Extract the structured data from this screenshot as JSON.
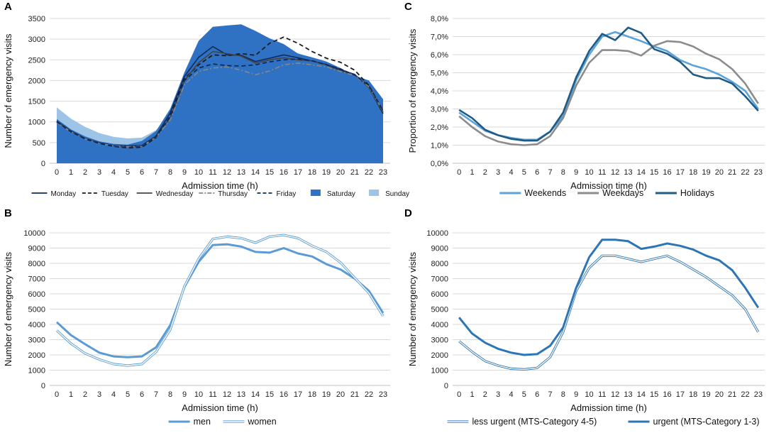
{
  "figure": {
    "panels": [
      {
        "label": "A",
        "chart_data": {
          "type": "area",
          "x": [
            0,
            1,
            2,
            3,
            4,
            5,
            6,
            7,
            8,
            9,
            10,
            11,
            12,
            13,
            14,
            15,
            16,
            17,
            18,
            19,
            20,
            21,
            22,
            23
          ],
          "xlabel": "Admission time (h)",
          "ylabel": "Number of emergency visits",
          "ylim": [
            0,
            3500
          ],
          "yticks": [
            "0",
            "500",
            "1000",
            "1500",
            "2000",
            "2500",
            "3000",
            "3500"
          ],
          "grid": true,
          "legend_position": "bottom",
          "series": [
            {
              "name": "Sunday",
              "kind": "area",
              "color": "#9dc3e6",
              "values": [
                1350,
                1080,
                880,
                730,
                640,
                600,
                620,
                800,
                1200,
                1950,
                2700,
                3100,
                3280,
                3130,
                3050,
                2890,
                2790,
                2660,
                2540,
                2420,
                2290,
                2150,
                1900,
                1450
              ]
            },
            {
              "name": "Saturday",
              "kind": "area",
              "color": "#2f72c4",
              "values": [
                1070,
                820,
                650,
                530,
                470,
                450,
                540,
                780,
                1320,
                2200,
                2960,
                3300,
                3330,
                3360,
                3200,
                3020,
                2880,
                2650,
                2560,
                2460,
                2300,
                2120,
                2000,
                1550
              ]
            },
            {
              "name": "Monday",
              "kind": "line",
              "style": "solid",
              "color": "#0d2a5e",
              "values": [
                1020,
                780,
                600,
                500,
                430,
                420,
                430,
                660,
                1220,
                2100,
                2560,
                2820,
                2620,
                2610,
                2460,
                2540,
                2620,
                2550,
                2470,
                2390,
                2260,
                2150,
                1830,
                1200
              ]
            },
            {
              "name": "Tuesday",
              "kind": "line",
              "style": "dash",
              "color": "#1a1a1a",
              "values": [
                1000,
                770,
                590,
                480,
                410,
                370,
                390,
                620,
                1150,
                2050,
                2380,
                2620,
                2600,
                2650,
                2610,
                2900,
                3050,
                2900,
                2700,
                2540,
                2440,
                2250,
                1880,
                1250
              ]
            },
            {
              "name": "Wednesday",
              "kind": "line",
              "style": "solid",
              "color": "#444444",
              "values": [
                1010,
                770,
                590,
                490,
                420,
                400,
                410,
                650,
                1100,
                2000,
                2430,
                2700,
                2650,
                2590,
                2420,
                2500,
                2550,
                2500,
                2470,
                2380,
                2230,
                2140,
                1830,
                1230
              ]
            },
            {
              "name": "Thursday",
              "kind": "line",
              "style": "dashdot",
              "color": "#888888",
              "values": [
                980,
                760,
                590,
                480,
                420,
                400,
                410,
                630,
                1050,
                1900,
                2220,
                2300,
                2330,
                2250,
                2140,
                2230,
                2380,
                2420,
                2380,
                2330,
                2220,
                2120,
                1850,
                1260
              ]
            },
            {
              "name": "Friday",
              "kind": "line",
              "style": "dash",
              "color": "#0d2a5e",
              "values": [
                1000,
                760,
                590,
                480,
                410,
                380,
                400,
                640,
                1130,
                2000,
                2300,
                2400,
                2360,
                2350,
                2380,
                2450,
                2500,
                2520,
                2480,
                2380,
                2280,
                2130,
                1880,
                1270
              ]
            }
          ]
        }
      },
      {
        "label": "B",
        "chart_data": {
          "type": "line",
          "x": [
            0,
            1,
            2,
            3,
            4,
            5,
            6,
            7,
            8,
            9,
            10,
            11,
            12,
            13,
            14,
            15,
            16,
            17,
            18,
            19,
            20,
            21,
            22,
            23
          ],
          "xlabel": "Admission time (h)",
          "ylabel": "Number of emergency visits",
          "ylim": [
            0,
            10000
          ],
          "yticks": [
            "0",
            "1000",
            "2000",
            "3000",
            "4000",
            "5000",
            "6000",
            "7000",
            "8000",
            "9000",
            "10000"
          ],
          "grid": true,
          "legend_position": "bottom",
          "series": [
            {
              "name": "men",
              "style": "thick",
              "color": "#5b9bd5",
              "values": [
                4150,
                3300,
                2700,
                2150,
                1900,
                1850,
                1900,
                2500,
                3950,
                6450,
                8100,
                9200,
                9250,
                9100,
                8750,
                8700,
                9000,
                8650,
                8450,
                7950,
                7600,
                7000,
                6200,
                4750
              ]
            },
            {
              "name": "women",
              "style": "double",
              "color": "#5b9bd5",
              "values": [
                3600,
                2750,
                2100,
                1700,
                1400,
                1300,
                1400,
                2200,
                3650,
                6500,
                8300,
                9600,
                9750,
                9650,
                9350,
                9750,
                9850,
                9650,
                9150,
                8750,
                8050,
                7050,
                6050,
                4550
              ]
            }
          ]
        }
      },
      {
        "label": "C",
        "chart_data": {
          "type": "line",
          "x": [
            0,
            1,
            2,
            3,
            4,
            5,
            6,
            7,
            8,
            9,
            10,
            11,
            12,
            13,
            14,
            15,
            16,
            17,
            18,
            19,
            20,
            21,
            22,
            23
          ],
          "xlabel": "Admission time (h)",
          "ylabel": "Proportion of emergency visits",
          "ylim": [
            0,
            8
          ],
          "yticks": [
            "0,0%",
            "1,0%",
            "2,0%",
            "3,0%",
            "4,0%",
            "5,0%",
            "6,0%",
            "7,0%",
            "8,0%"
          ],
          "grid": true,
          "legend_position": "bottom",
          "series": [
            {
              "name": "Weekends",
              "color": "#5ba3d9",
              "values": [
                2.8,
                2.3,
                1.8,
                1.55,
                1.4,
                1.3,
                1.3,
                1.75,
                2.6,
                4.6,
                6.0,
                7.0,
                7.25,
                7.0,
                6.75,
                6.45,
                6.2,
                5.7,
                5.4,
                5.2,
                4.9,
                4.5,
                4.0,
                3.0
              ]
            },
            {
              "name": "Weekdays",
              "color": "#8c8c8c",
              "values": [
                2.6,
                2.0,
                1.5,
                1.2,
                1.05,
                1.0,
                1.05,
                1.5,
                2.5,
                4.3,
                5.55,
                6.25,
                6.25,
                6.2,
                5.95,
                6.5,
                6.75,
                6.7,
                6.45,
                6.05,
                5.75,
                5.2,
                4.4,
                3.3
              ]
            },
            {
              "name": "Holidays",
              "color": "#1f5b85",
              "values": [
                2.95,
                2.5,
                1.85,
                1.55,
                1.35,
                1.25,
                1.25,
                1.75,
                2.8,
                4.75,
                6.2,
                7.15,
                6.8,
                7.5,
                7.2,
                6.3,
                6.05,
                5.6,
                4.9,
                4.7,
                4.7,
                4.4,
                3.7,
                2.9
              ]
            }
          ]
        }
      },
      {
        "label": "D",
        "chart_data": {
          "type": "line",
          "x": [
            0,
            1,
            2,
            3,
            4,
            5,
            6,
            7,
            8,
            9,
            10,
            11,
            12,
            13,
            14,
            15,
            16,
            17,
            18,
            19,
            20,
            21,
            22,
            23
          ],
          "xlabel": "Admission time (h)",
          "ylabel": "Number of emergency visits",
          "ylim": [
            0,
            10000
          ],
          "yticks": [
            "0",
            "1000",
            "2000",
            "3000",
            "4000",
            "5000",
            "6000",
            "7000",
            "8000",
            "9000",
            "10000"
          ],
          "grid": true,
          "legend_position": "bottom",
          "series": [
            {
              "name": "less urgent (MTS-Category 4-5)",
              "style": "double",
              "color": "#2e75b6",
              "values": [
                2900,
                2200,
                1600,
                1300,
                1100,
                1050,
                1150,
                1850,
                3500,
                6200,
                7700,
                8500,
                8500,
                8300,
                8100,
                8300,
                8500,
                8100,
                7600,
                7100,
                6500,
                5900,
                5000,
                3500
              ]
            },
            {
              "name": "urgent (MTS-Category 1-3)",
              "style": "thick",
              "color": "#2e75b6",
              "values": [
                4450,
                3400,
                2800,
                2400,
                2150,
                2000,
                2050,
                2600,
                3800,
                6400,
                8400,
                9550,
                9550,
                9450,
                8950,
                9100,
                9300,
                9150,
                8900,
                8500,
                8200,
                7550,
                6400,
                5100
              ]
            }
          ]
        }
      }
    ]
  }
}
